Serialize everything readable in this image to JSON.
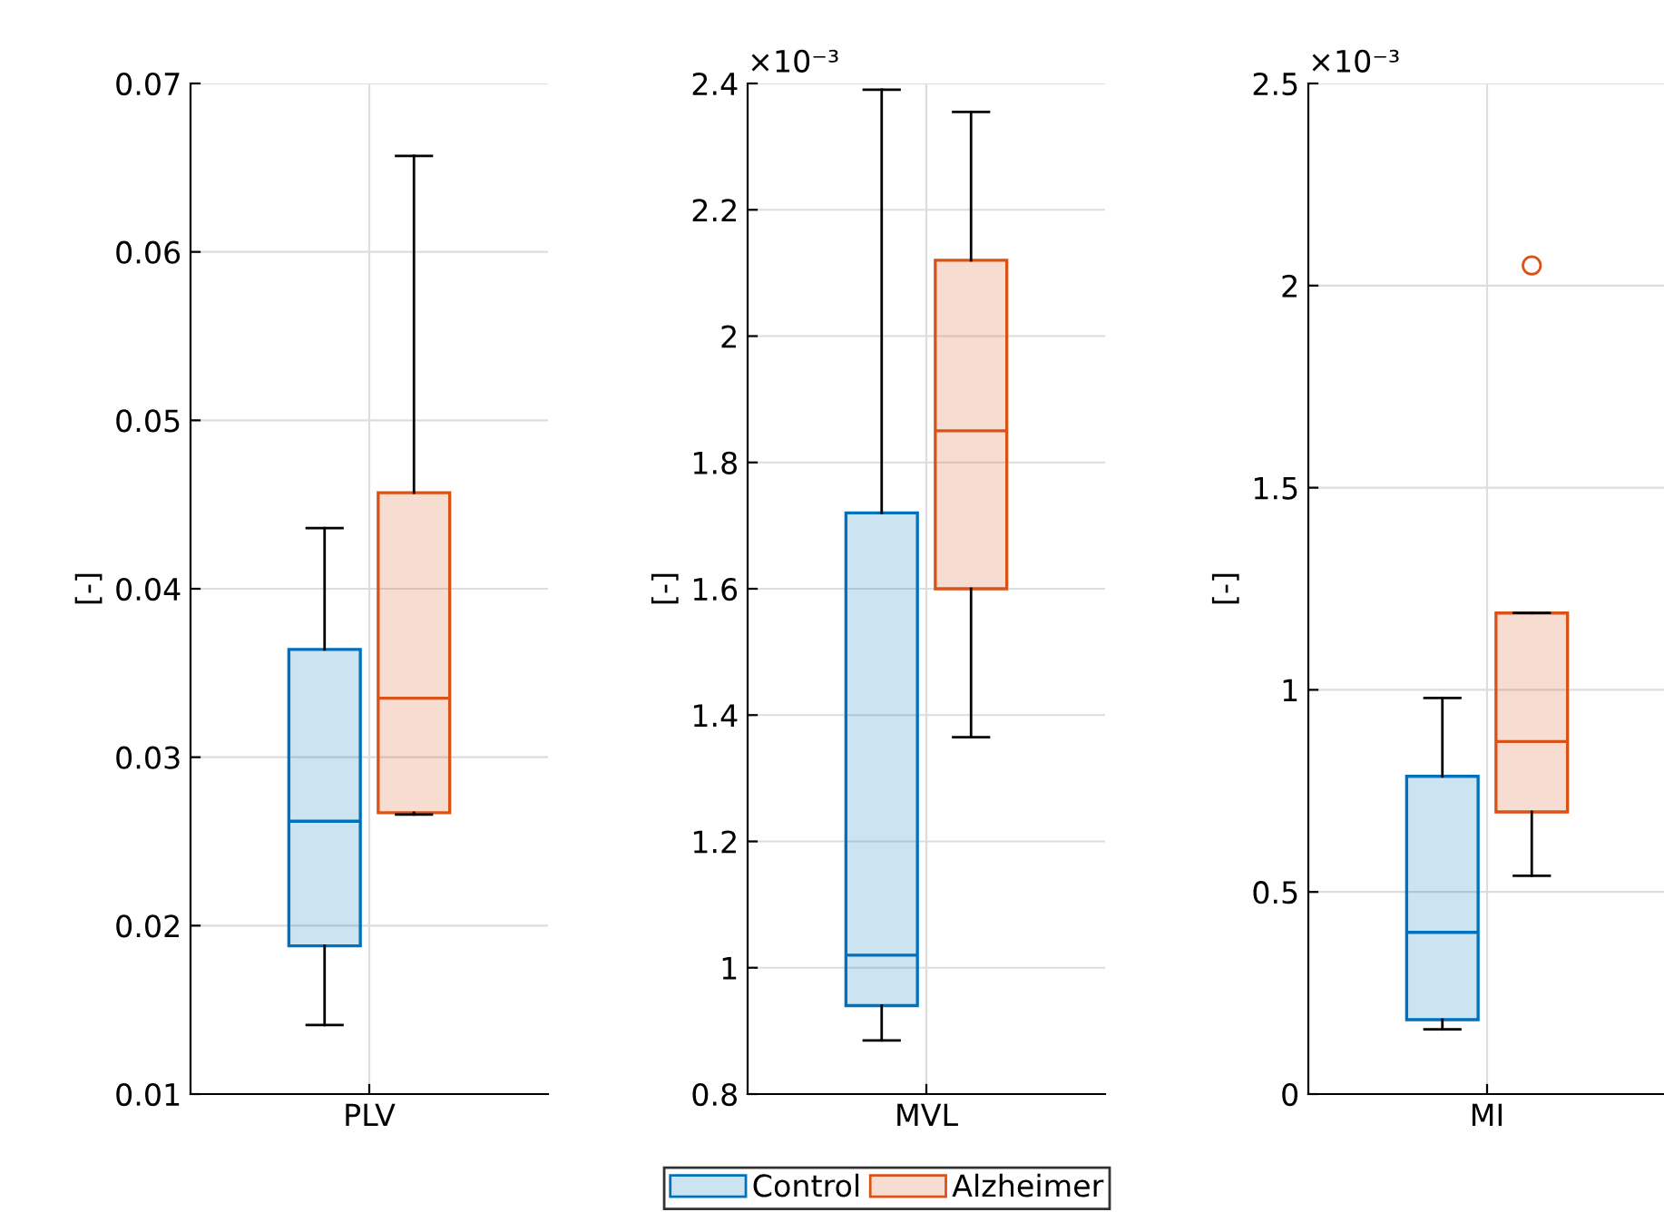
{
  "chart_data": [
    {
      "type": "box",
      "categories": [
        "PLV"
      ],
      "ylabel": "[-]",
      "ylim": [
        0.01,
        0.07
      ],
      "yticks": [
        0.01,
        0.02,
        0.03,
        0.04,
        0.05,
        0.06,
        0.07
      ],
      "grid": true,
      "legend": "bottom",
      "series": [
        {
          "name": "Control",
          "color": "#0072bd",
          "boxes": [
            {
              "low": 0.0141,
              "q1": 0.0188,
              "median": 0.0262,
              "q3": 0.0364,
              "high": 0.0436
            }
          ]
        },
        {
          "name": "Alzheimer",
          "color": "#d95319",
          "boxes": [
            {
              "low": 0.0266,
              "q1": 0.0267,
              "median": 0.0335,
              "q3": 0.0457,
              "high": 0.0657
            }
          ]
        }
      ]
    },
    {
      "type": "box",
      "categories": [
        "MVL"
      ],
      "ylabel": "[-]",
      "ylim": [
        0.8,
        2.4
      ],
      "annotations": [
        "×10⁻³"
      ],
      "grid": true,
      "yticks": [
        0.8,
        1,
        1.2,
        1.4,
        1.6,
        1.8,
        2,
        2.2,
        2.4
      ],
      "series": [
        {
          "color": "#0072bd",
          "boxes": [
            {
              "low": 0.885,
              "q1": 0.94,
              "median": 1.02,
              "q3": 1.72,
              "high": 2.39
            }
          ]
        },
        {
          "color": "#d95319",
          "boxes": [
            {
              "low": 1.365,
              "q1": 1.6,
              "median": 1.85,
              "q3": 2.12,
              "high": 2.355
            }
          ]
        }
      ]
    },
    {
      "type": "box",
      "categories": [
        "MI"
      ],
      "ylabel": "[-]",
      "ylim": [
        0,
        2.5
      ],
      "annotations": [
        "×10⁻³"
      ],
      "grid": true,
      "yticks": [
        0,
        0.5,
        1,
        1.5,
        2,
        2.5
      ],
      "series": [
        {
          "color": "#0072bd",
          "boxes": [
            {
              "low": 0.16,
              "q1": 0.184,
              "median": 0.4,
              "q3": 0.786,
              "high": 0.98
            }
          ]
        },
        {
          "color": "#d95319",
          "boxes": [
            {
              "low": 0.54,
              "q1": 0.698,
              "median": 0.872,
              "q3": 1.19,
              "high": 1.19,
              "outliers": [
                2.05
              ]
            }
          ]
        }
      ]
    }
  ]
}
